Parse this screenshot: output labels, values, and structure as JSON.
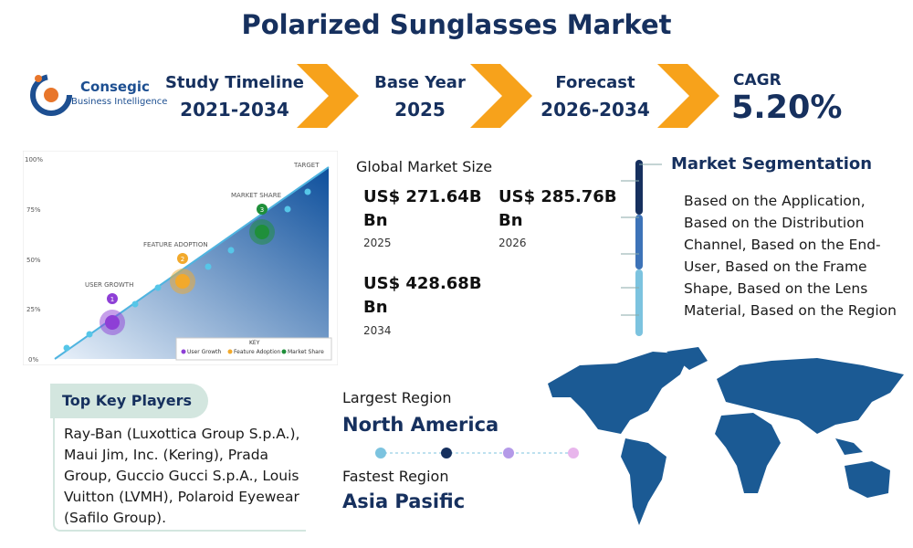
{
  "header": {
    "title": "Polarized Sunglasses Market"
  },
  "logo": {
    "name": "Consegic",
    "tagline": "Business Intelligence"
  },
  "stats": [
    {
      "label": "Study Timeline",
      "value": "2021-2034"
    },
    {
      "label": "Base Year",
      "value": "2025"
    },
    {
      "label": "Forecast",
      "value": "2026-2034"
    },
    {
      "label": "CAGR",
      "value": "5.20%"
    }
  ],
  "illustration": {
    "axis": [
      "100%",
      "75%",
      "50%",
      "25%",
      "0%"
    ],
    "target": "TARGET",
    "milestones": [
      {
        "number": "1",
        "label": "USER GROWTH"
      },
      {
        "number": "2",
        "label": "FEATURE ADOPTION"
      },
      {
        "number": "3",
        "label": "MARKET SHARE"
      }
    ],
    "key": {
      "title": "KEY",
      "items": [
        "User Growth",
        "Feature Adoption",
        "Market Share"
      ]
    }
  },
  "market_size": {
    "title": "Global Market Size",
    "entries": [
      {
        "value": "US$ 271.64B Bn",
        "year": "2025"
      },
      {
        "value": "US$ 285.76B Bn",
        "year": "2026"
      },
      {
        "value": "US$ 428.68B Bn",
        "year": "2034"
      }
    ]
  },
  "segmentation": {
    "title": "Market Segmentation",
    "text": "Based on the Application, Based on the Distribution Channel, Based on the End-User, Based on the Frame Shape, Based on the Lens Material, Based on the Region"
  },
  "key_players": {
    "title": "Top Key Players",
    "text": "Ray-Ban (Luxottica Group S.p.A.), Maui Jim, Inc. (Kering), Prada Group, Guccio Gucci S.p.A., Louis Vuitton (LVMH), Polaroid Eyewear (Safilo Group)."
  },
  "regions": {
    "largest": {
      "label": "Largest Region",
      "value": "North America"
    },
    "fastest": {
      "label": "Fastest Region",
      "value": "Asia Pasific"
    }
  }
}
